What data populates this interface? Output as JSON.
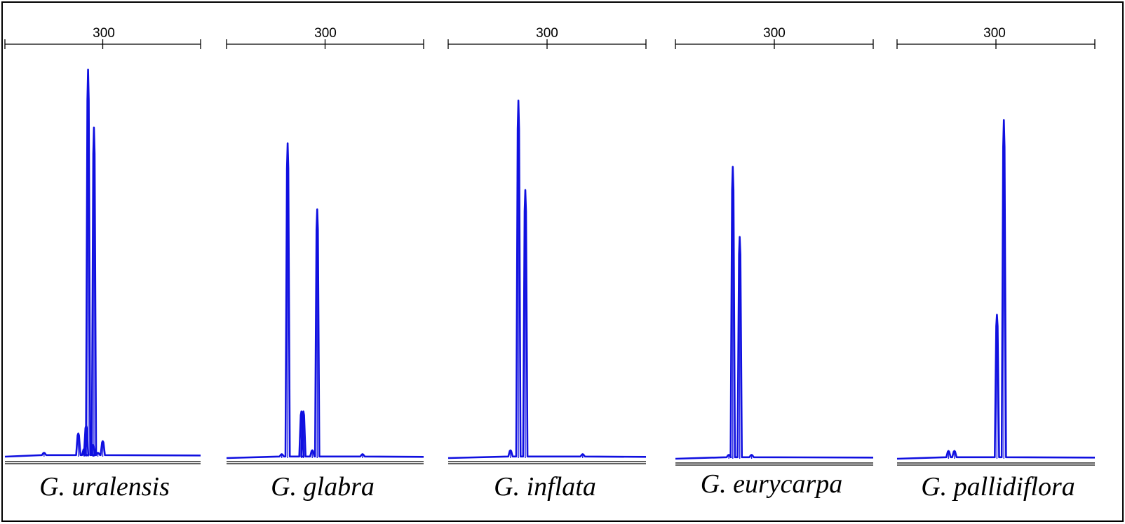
{
  "chart_data": [
    {
      "type": "line",
      "title": "G. uralensis",
      "xtick_labels": [
        "300"
      ],
      "x_range": [
        200,
        400
      ],
      "y_range": [
        0,
        100
      ],
      "axis_ticks": [
        200,
        300,
        400
      ],
      "color": "#1010e0",
      "peaks": [
        {
          "x": 240,
          "y": 1
        },
        {
          "x": 275,
          "y": 6
        },
        {
          "x": 281,
          "y": 2
        },
        {
          "x": 283,
          "y": 8
        },
        {
          "x": 285,
          "y": 100
        },
        {
          "x": 290,
          "y": 3
        },
        {
          "x": 291,
          "y": 85
        },
        {
          "x": 295,
          "y": 1
        },
        {
          "x": 300,
          "y": 4
        }
      ]
    },
    {
      "type": "line",
      "title": "G. glabra",
      "xtick_labels": [
        "300"
      ],
      "x_range": [
        200,
        400
      ],
      "y_range": [
        0,
        100
      ],
      "axis_ticks": [
        200,
        300,
        400
      ],
      "color": "#1010e0",
      "peaks": [
        {
          "x": 256,
          "y": 1
        },
        {
          "x": 262,
          "y": 81
        },
        {
          "x": 276,
          "y": 12
        },
        {
          "x": 278,
          "y": 12
        },
        {
          "x": 287,
          "y": 2
        },
        {
          "x": 292,
          "y": 64
        },
        {
          "x": 338,
          "y": 1
        }
      ]
    },
    {
      "type": "line",
      "title": "G. inflata",
      "xtick_labels": [
        "300"
      ],
      "x_range": [
        200,
        400
      ],
      "y_range": [
        0,
        100
      ],
      "axis_ticks": [
        200,
        300,
        400
      ],
      "color": "#1010e0",
      "peaks": [
        {
          "x": 263,
          "y": 2
        },
        {
          "x": 271,
          "y": 92
        },
        {
          "x": 278,
          "y": 69
        },
        {
          "x": 336,
          "y": 1
        }
      ]
    },
    {
      "type": "line",
      "title": "G. eurycarpa",
      "xtick_labels": [
        "300"
      ],
      "x_range": [
        200,
        400
      ],
      "y_range": [
        0,
        100
      ],
      "axis_ticks": [
        200,
        300,
        400
      ],
      "color": "#1010e0",
      "peaks": [
        {
          "x": 254,
          "y": 1
        },
        {
          "x": 258,
          "y": 75
        },
        {
          "x": 265,
          "y": 57
        },
        {
          "x": 277,
          "y": 1
        }
      ]
    },
    {
      "type": "line",
      "title": "G. pallidiflora",
      "xtick_labels": [
        "300"
      ],
      "x_range": [
        200,
        400
      ],
      "y_range": [
        0,
        100
      ],
      "axis_ticks": [
        200,
        300,
        400
      ],
      "color": "#1010e0",
      "peaks": [
        {
          "x": 252,
          "y": 2
        },
        {
          "x": 258,
          "y": 2
        },
        {
          "x": 301,
          "y": 37
        },
        {
          "x": 308,
          "y": 87
        }
      ]
    }
  ]
}
